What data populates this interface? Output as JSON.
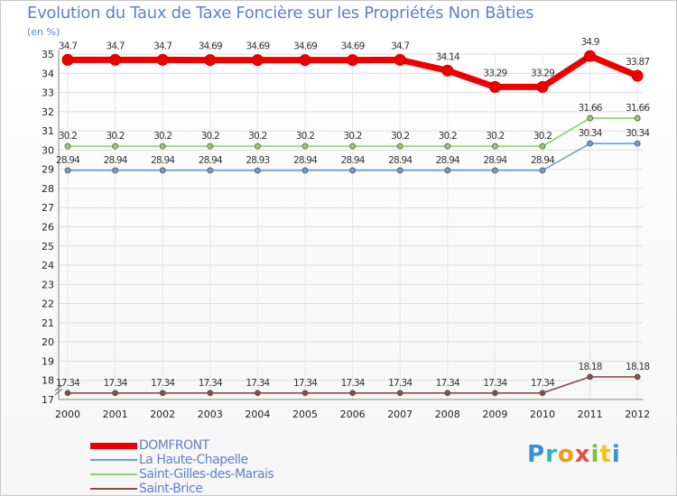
{
  "title": "Evolution du Taux de Taxe Foncière sur les Propriétés Non Bâties",
  "subtitle": "(en %)",
  "logo": "Proxiti",
  "chart_data": {
    "type": "line",
    "x": [
      "2000",
      "2001",
      "2002",
      "2003",
      "2004",
      "2005",
      "2006",
      "2007",
      "2008",
      "2009",
      "2010",
      "2011",
      "2012"
    ],
    "ylim": [
      17,
      35
    ],
    "yticks": [
      17,
      18,
      19,
      20,
      21,
      22,
      23,
      24,
      25,
      26,
      27,
      28,
      29,
      30,
      31,
      32,
      33,
      34,
      35
    ],
    "grid": true,
    "series": [
      {
        "name": "DOMFRONT",
        "color": "#ee0000",
        "values": [
          34.7,
          34.7,
          34.7,
          34.69,
          34.69,
          34.69,
          34.69,
          34.7,
          34.14,
          33.29,
          33.29,
          34.9,
          33.87
        ],
        "labels": [
          "34.7",
          "34.7",
          "34.7",
          "34.69",
          "34.69",
          "34.69",
          "34.69",
          "34.7",
          "34.14",
          "33.29",
          "33.29",
          "34.9",
          "33.87"
        ]
      },
      {
        "name": "La Haute-Chapelle",
        "color": "#6f9fd0",
        "values": [
          28.94,
          28.94,
          28.94,
          28.94,
          28.93,
          28.94,
          28.94,
          28.94,
          28.94,
          28.94,
          28.94,
          30.34,
          30.34
        ],
        "labels": [
          "28.94",
          "28.94",
          "28.94",
          "28.94",
          "28.93",
          "28.94",
          "28.94",
          "28.94",
          "28.94",
          "28.94",
          "28.94",
          "30.34",
          "30.34"
        ]
      },
      {
        "name": "Saint-Gilles-des-Marais",
        "color": "#8fd068",
        "values": [
          30.2,
          30.2,
          30.2,
          30.2,
          30.2,
          30.2,
          30.2,
          30.2,
          30.2,
          30.2,
          30.2,
          31.66,
          31.66
        ],
        "labels": [
          "30.2",
          "30.2",
          "30.2",
          "30.2",
          "30.2",
          "30.2",
          "30.2",
          "30.2",
          "30.2",
          "30.2",
          "30.2",
          "31.66",
          "31.66"
        ]
      },
      {
        "name": "Saint-Brice",
        "color": "#8a4a4a",
        "values": [
          17.34,
          17.34,
          17.34,
          17.34,
          17.34,
          17.34,
          17.34,
          17.34,
          17.34,
          17.34,
          17.34,
          18.18,
          18.18
        ],
        "labels": [
          "17.34",
          "17.34",
          "17.34",
          "17.34",
          "17.34",
          "17.34",
          "17.34",
          "17.34",
          "17.34",
          "17.34",
          "17.34",
          "18.18",
          "18.18"
        ]
      }
    ]
  }
}
